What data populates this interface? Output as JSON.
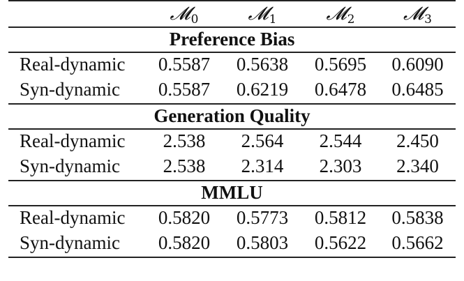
{
  "columns": [
    {
      "symbol": "𝓜",
      "subscript": "0"
    },
    {
      "symbol": "𝓜",
      "subscript": "1"
    },
    {
      "symbol": "𝓜",
      "subscript": "2"
    },
    {
      "symbol": "𝓜",
      "subscript": "3"
    }
  ],
  "sections": [
    {
      "title": "Preference Bias",
      "rows": [
        {
          "label": "Real-dynamic",
          "values": [
            "0.5587",
            "0.5638",
            "0.5695",
            "0.6090"
          ]
        },
        {
          "label": "Syn-dynamic",
          "values": [
            "0.5587",
            "0.6219",
            "0.6478",
            "0.6485"
          ]
        }
      ]
    },
    {
      "title": "Generation Quality",
      "rows": [
        {
          "label": "Real-dynamic",
          "values": [
            "2.538",
            "2.564",
            "2.544",
            "2.450"
          ]
        },
        {
          "label": "Syn-dynamic",
          "values": [
            "2.538",
            "2.314",
            "2.303",
            "2.340"
          ]
        }
      ]
    },
    {
      "title": "MMLU",
      "rows": [
        {
          "label": "Real-dynamic",
          "values": [
            "0.5820",
            "0.5773",
            "0.5812",
            "0.5838"
          ]
        },
        {
          "label": "Syn-dynamic",
          "values": [
            "0.5820",
            "0.5803",
            "0.5622",
            "0.5662"
          ]
        }
      ]
    }
  ]
}
